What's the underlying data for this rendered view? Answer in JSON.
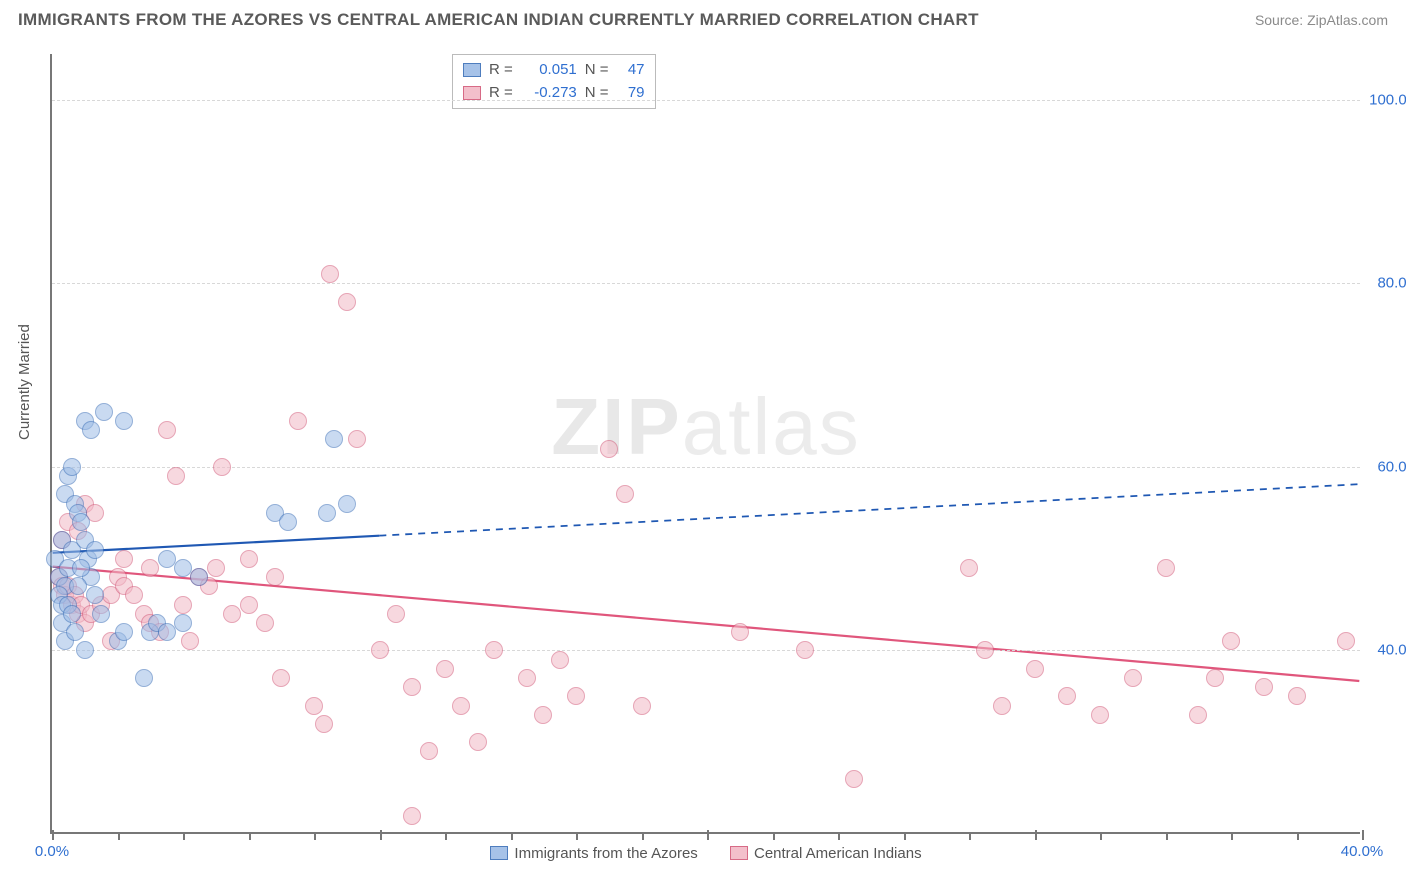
{
  "header": {
    "title": "IMMIGRANTS FROM THE AZORES VS CENTRAL AMERICAN INDIAN CURRENTLY MARRIED CORRELATION CHART",
    "source": "Source: ZipAtlas.com"
  },
  "ylabel": "Currently Married",
  "watermark": {
    "bold": "ZIP",
    "light": "atlas"
  },
  "axes": {
    "xlim": [
      0,
      40
    ],
    "ylim": [
      20,
      105
    ],
    "xticks": [
      0,
      10,
      20,
      30,
      40
    ],
    "xtick_labels": {
      "0": "0.0%",
      "40": "40.0%"
    },
    "xtick_minor_count": 4,
    "yticks": [
      40,
      60,
      80,
      100
    ],
    "ytick_labels": [
      "40.0%",
      "60.0%",
      "80.0%",
      "100.0%"
    ]
  },
  "series": [
    {
      "name": "Immigrants from the Azores",
      "legend_label": "Immigrants from the Azores",
      "fill": "#9dbce6",
      "stroke": "#3b6fb8",
      "fill_opacity": 0.55,
      "marker_radius": 9,
      "R": "0.051",
      "N": "47",
      "trend": {
        "color": "#1f58b3",
        "width": 2.2,
        "y_at_x0": 50.5,
        "y_at_xmax": 58.0,
        "solid_until_x": 10.0
      },
      "points": [
        [
          0.1,
          50
        ],
        [
          0.2,
          48
        ],
        [
          0.3,
          52
        ],
        [
          0.4,
          47
        ],
        [
          0.5,
          49
        ],
        [
          0.6,
          51
        ],
        [
          0.4,
          57
        ],
        [
          0.5,
          59
        ],
        [
          0.6,
          60
        ],
        [
          0.7,
          56
        ],
        [
          0.8,
          55
        ],
        [
          0.9,
          54
        ],
        [
          1.0,
          52
        ],
        [
          1.1,
          50
        ],
        [
          1.2,
          48
        ],
        [
          1.3,
          46
        ],
        [
          1.5,
          44
        ],
        [
          1.0,
          65
        ],
        [
          1.2,
          64
        ],
        [
          1.6,
          66
        ],
        [
          2.2,
          65
        ],
        [
          0.3,
          43
        ],
        [
          0.4,
          41
        ],
        [
          0.7,
          42
        ],
        [
          1.0,
          40
        ],
        [
          2.0,
          41
        ],
        [
          2.2,
          42
        ],
        [
          2.8,
          37
        ],
        [
          3.0,
          42
        ],
        [
          3.2,
          43
        ],
        [
          3.5,
          42
        ],
        [
          4.0,
          43
        ],
        [
          3.5,
          50
        ],
        [
          4.0,
          49
        ],
        [
          4.5,
          48
        ],
        [
          6.8,
          55
        ],
        [
          7.2,
          54
        ],
        [
          8.4,
          55
        ],
        [
          8.6,
          63
        ],
        [
          9.0,
          56
        ],
        [
          0.2,
          46
        ],
        [
          0.3,
          45
        ],
        [
          0.5,
          45
        ],
        [
          0.6,
          44
        ],
        [
          0.8,
          47
        ],
        [
          0.9,
          49
        ],
        [
          1.3,
          51
        ]
      ]
    },
    {
      "name": "Central American Indians",
      "legend_label": "Central American Indians",
      "fill": "#f2b9c6",
      "stroke": "#d35a7a",
      "fill_opacity": 0.55,
      "marker_radius": 9,
      "R": "-0.273",
      "N": "79",
      "trend": {
        "color": "#e0567c",
        "width": 2.2,
        "y_at_x0": 49.0,
        "y_at_xmax": 36.5,
        "solid_until_x": 40.0
      },
      "points": [
        [
          0.2,
          48
        ],
        [
          0.3,
          47
        ],
        [
          0.4,
          46
        ],
        [
          0.5,
          47
        ],
        [
          0.6,
          45
        ],
        [
          0.7,
          46
        ],
        [
          0.8,
          44
        ],
        [
          0.9,
          45
        ],
        [
          1.0,
          43
        ],
        [
          1.2,
          44
        ],
        [
          1.5,
          45
        ],
        [
          1.8,
          46
        ],
        [
          0.3,
          52
        ],
        [
          0.5,
          54
        ],
        [
          0.8,
          53
        ],
        [
          1.0,
          56
        ],
        [
          1.3,
          55
        ],
        [
          2.0,
          48
        ],
        [
          2.2,
          47
        ],
        [
          2.5,
          46
        ],
        [
          2.8,
          44
        ],
        [
          3.0,
          43
        ],
        [
          3.3,
          42
        ],
        [
          3.5,
          64
        ],
        [
          4.0,
          45
        ],
        [
          4.2,
          41
        ],
        [
          4.5,
          48
        ],
        [
          4.8,
          47
        ],
        [
          5.0,
          49
        ],
        [
          5.5,
          44
        ],
        [
          6.0,
          45
        ],
        [
          6.5,
          43
        ],
        [
          7.0,
          37
        ],
        [
          7.5,
          65
        ],
        [
          8.0,
          34
        ],
        [
          8.3,
          32
        ],
        [
          8.5,
          81
        ],
        [
          9.0,
          78
        ],
        [
          9.3,
          63
        ],
        [
          10.0,
          40
        ],
        [
          10.5,
          44
        ],
        [
          11.0,
          36
        ],
        [
          11.5,
          29
        ],
        [
          12.0,
          38
        ],
        [
          12.5,
          34
        ],
        [
          13.0,
          30
        ],
        [
          13.5,
          40
        ],
        [
          14.5,
          37
        ],
        [
          15.0,
          33
        ],
        [
          15.5,
          39
        ],
        [
          16.0,
          35
        ],
        [
          17.0,
          62
        ],
        [
          17.5,
          57
        ],
        [
          18.0,
          34
        ],
        [
          21.0,
          42
        ],
        [
          23.0,
          40
        ],
        [
          24.5,
          26
        ],
        [
          28.0,
          49
        ],
        [
          28.5,
          40
        ],
        [
          29.0,
          34
        ],
        [
          30.0,
          38
        ],
        [
          31.0,
          35
        ],
        [
          32.0,
          33
        ],
        [
          33.0,
          37
        ],
        [
          34.0,
          49
        ],
        [
          35.0,
          33
        ],
        [
          35.5,
          37
        ],
        [
          36.0,
          41
        ],
        [
          37.0,
          36
        ],
        [
          38.0,
          35
        ],
        [
          39.5,
          41
        ],
        [
          1.8,
          41
        ],
        [
          2.2,
          50
        ],
        [
          3.0,
          49
        ],
        [
          5.2,
          60
        ],
        [
          6.0,
          50
        ],
        [
          6.8,
          48
        ],
        [
          3.8,
          59
        ],
        [
          11.0,
          22
        ]
      ]
    }
  ],
  "stat_legend_labels": {
    "R": "R =",
    "N": "N ="
  }
}
